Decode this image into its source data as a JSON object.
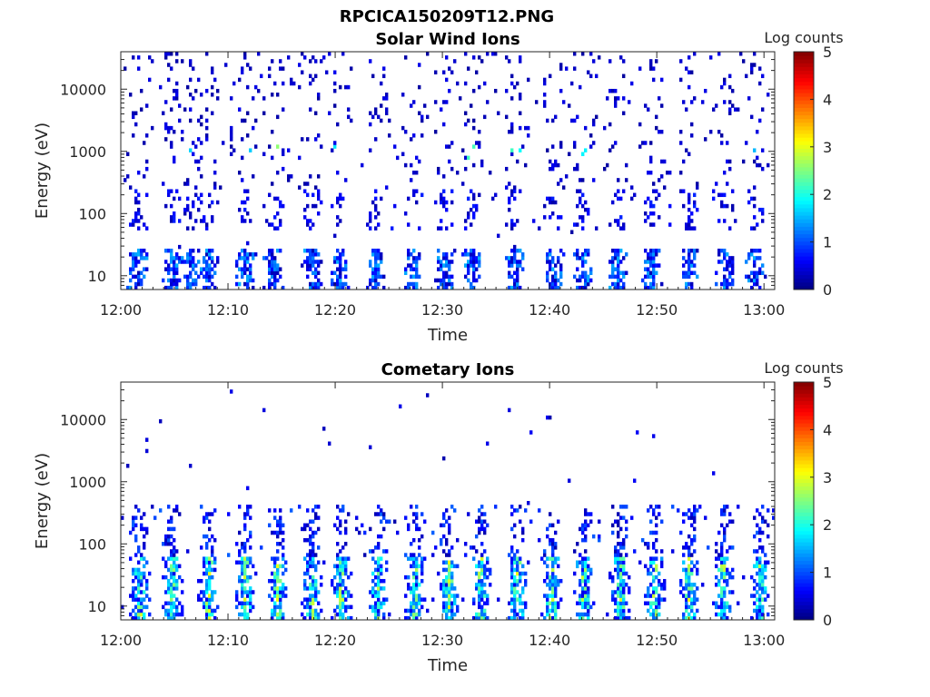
{
  "figure": {
    "title": "RPCICA150209T12.PNG",
    "colorbar_label": "Log counts"
  },
  "chart_data": [
    {
      "type": "heatmap",
      "title": "Solar Wind Ions",
      "xlabel": "Time",
      "ylabel": "Energy (eV)",
      "yscale": "log",
      "ylim": [
        6,
        40000
      ],
      "xlim": [
        "12:00",
        "13:01"
      ],
      "x_ticks": [
        "12:00",
        "12:10",
        "12:20",
        "12:30",
        "12:40",
        "12:50",
        "13:00"
      ],
      "y_ticks": [
        "10",
        "100",
        "1000",
        "10000"
      ],
      "y_tick_values": [
        10,
        100,
        1000,
        10000
      ],
      "colorbar": {
        "label": "Log counts",
        "range": [
          0,
          5
        ],
        "ticks": [
          "0",
          "1",
          "2",
          "3",
          "4",
          "5"
        ],
        "colormap": "jet"
      },
      "burst_times_min": [
        1.6,
        4.8,
        6.6,
        8.2,
        11.6,
        14.2,
        17.8,
        20.4,
        23.8,
        27.3,
        30.2,
        32.8,
        36.8,
        40.4,
        43.1,
        46.4,
        49.6,
        53.0,
        56.5,
        59.2
      ],
      "low_energy_band_eV": [
        6,
        28
      ],
      "mid_energy_band_eV": [
        60,
        250
      ],
      "sparse_counts_up_to_eV": 40000,
      "peak_log_counts": 3.0
    },
    {
      "type": "heatmap",
      "title": "Cometary Ions",
      "xlabel": "Time",
      "ylabel": "Energy (eV)",
      "yscale": "log",
      "ylim": [
        6,
        40000
      ],
      "xlim": [
        "12:00",
        "13:01"
      ],
      "x_ticks": [
        "12:00",
        "12:10",
        "12:20",
        "12:30",
        "12:40",
        "12:50",
        "13:00"
      ],
      "y_ticks": [
        "10",
        "100",
        "1000",
        "10000"
      ],
      "y_tick_values": [
        10,
        100,
        1000,
        10000
      ],
      "colorbar": {
        "label": "Log counts",
        "range": [
          0,
          5
        ],
        "ticks": [
          "0",
          "1",
          "2",
          "3",
          "4",
          "5"
        ],
        "colormap": "jet"
      },
      "burst_times_min": [
        1.8,
        4.8,
        8.2,
        11.6,
        14.6,
        17.8,
        20.6,
        24.0,
        27.4,
        30.6,
        33.6,
        37.0,
        40.2,
        43.2,
        46.6,
        49.8,
        53.0,
        56.2,
        59.6
      ],
      "core_band_eV": [
        8,
        60
      ],
      "extended_band_eV": [
        60,
        400
      ],
      "peak_log_counts": 3.0
    }
  ]
}
